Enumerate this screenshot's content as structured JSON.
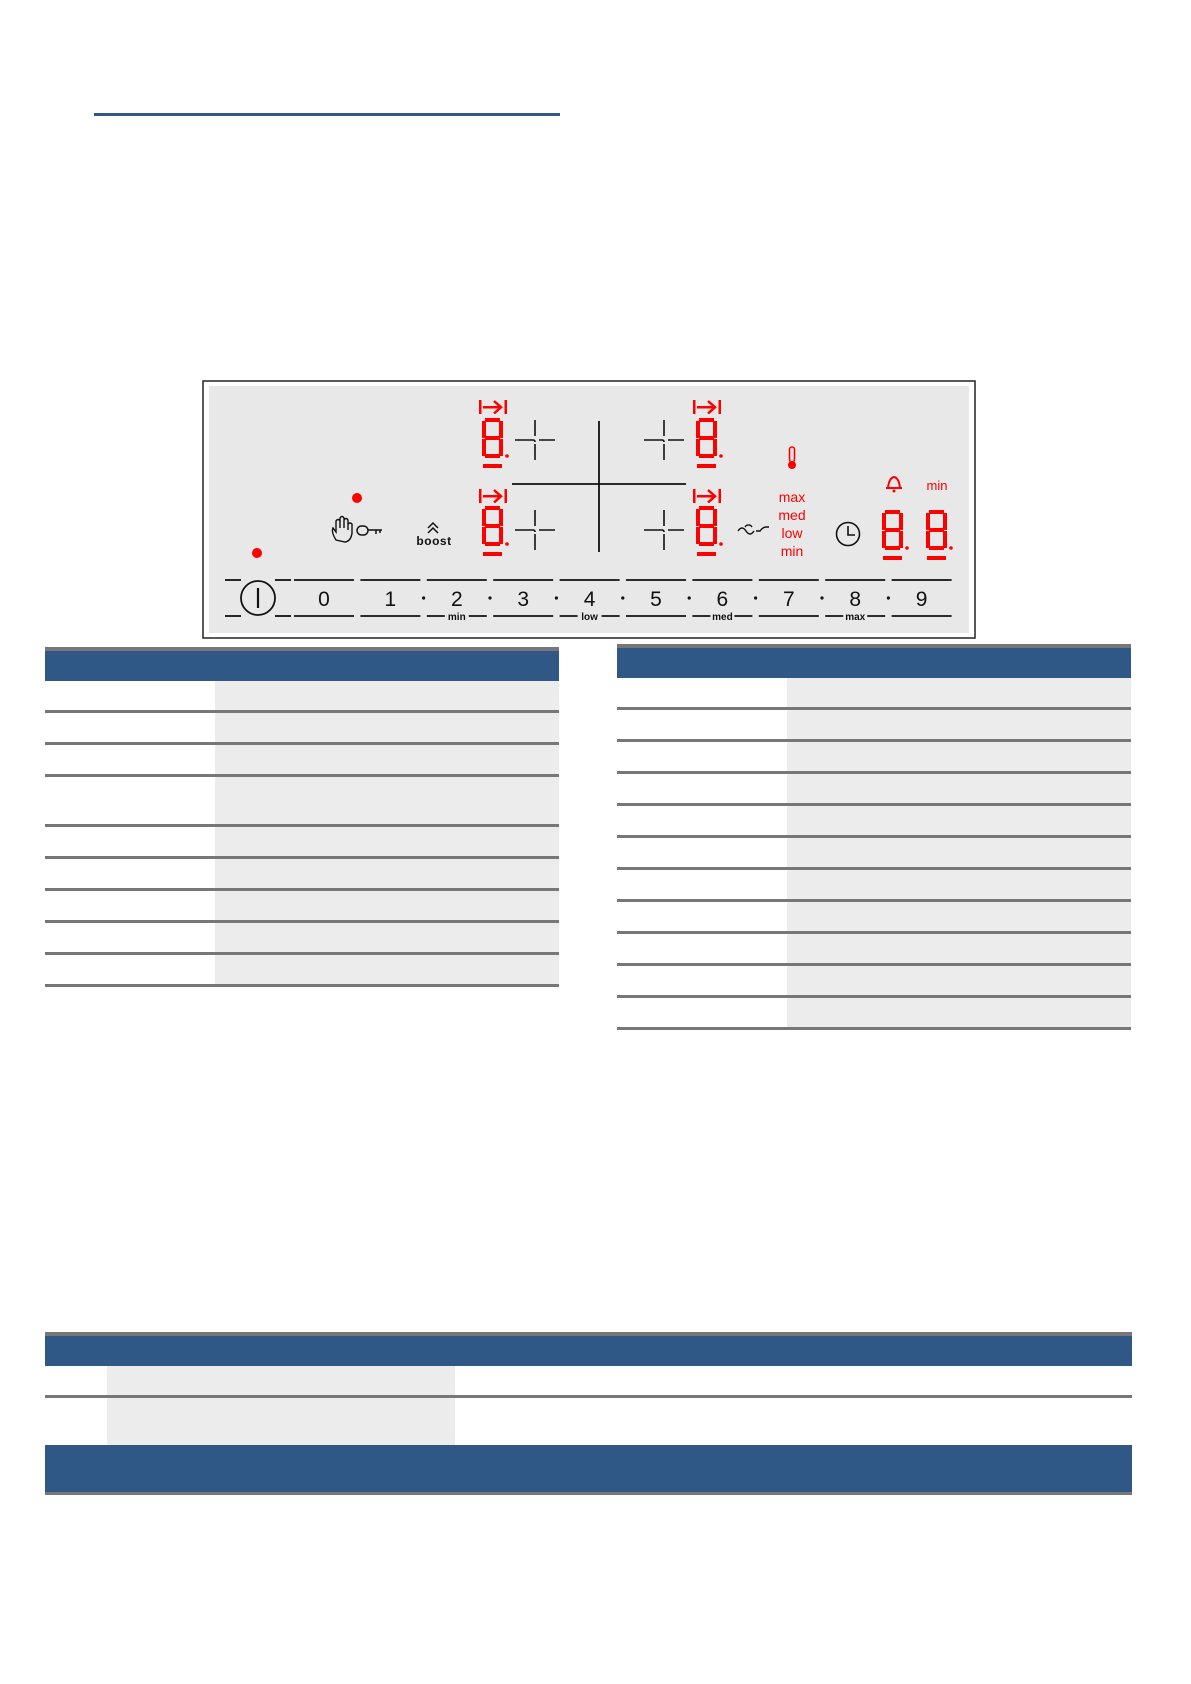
{
  "colors": {
    "accent_blue": "#2f5886",
    "display_red": "#ff0000",
    "panel_gray": "#e8e8e8",
    "cell_gray": "#ececec",
    "rule_gray": "#777777"
  },
  "panel": {
    "power_icon": "power-icon",
    "lock_icons": [
      "hand-icon",
      "key-icon"
    ],
    "boost_label": "boost",
    "zone_icon": "zone-extend-arrow-icon",
    "temperature_icon": "thermometer-icon",
    "frying_levels": [
      "max",
      "med",
      "low",
      "min"
    ],
    "wave_icon": "sensor-wave-icon",
    "clock_icon": "clock-icon",
    "bell_icon": "bell-icon",
    "timer_unit": "min",
    "slider_numbers": [
      "0",
      "1",
      "2",
      "3",
      "4",
      "5",
      "6",
      "7",
      "8",
      "9"
    ],
    "slider_labels": {
      "2": "min",
      "4": "low",
      "6": "med",
      "8": "max"
    }
  },
  "table_left": {
    "rows": [
      [
        "",
        ""
      ],
      [
        "",
        ""
      ],
      [
        "",
        ""
      ],
      [
        "",
        "",
        true
      ],
      [
        "",
        ""
      ],
      [
        "",
        ""
      ],
      [
        "",
        ""
      ],
      [
        "",
        ""
      ],
      [
        "",
        ""
      ]
    ]
  },
  "table_right": {
    "rows": [
      [
        "",
        ""
      ],
      [
        "",
        ""
      ],
      [
        "",
        ""
      ],
      [
        "",
        ""
      ],
      [
        "",
        ""
      ],
      [
        "",
        ""
      ],
      [
        "",
        ""
      ],
      [
        "",
        ""
      ],
      [
        "",
        ""
      ],
      [
        "",
        ""
      ],
      [
        "",
        ""
      ]
    ]
  },
  "table_bottom": {
    "rows": [
      [
        "",
        "",
        ""
      ],
      [
        "",
        "",
        "",
        true
      ]
    ]
  }
}
